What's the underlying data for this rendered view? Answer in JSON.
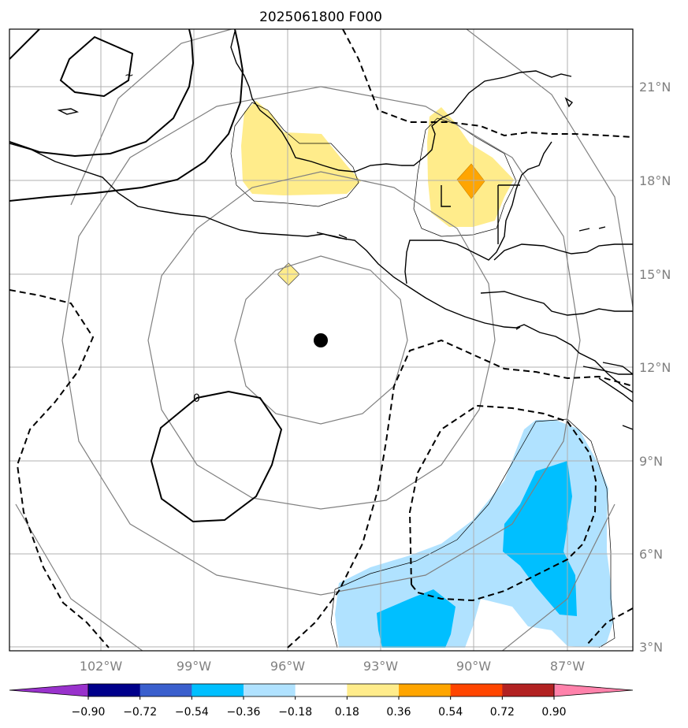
{
  "title": "2025061800 F000",
  "lon_labels": [
    "102°W",
    "99°W",
    "96°W",
    "93°W",
    "90°W",
    "87°W"
  ],
  "lat_labels": [
    "21°N",
    "18°N",
    "15°N",
    "12°N",
    "9°N",
    "6°N",
    "3°N"
  ],
  "colorbar": {
    "ticks": [
      "−0.90",
      "−0.72",
      "−0.54",
      "−0.36",
      "−0.18",
      "0.18",
      "0.36",
      "0.54",
      "0.72",
      "0.90"
    ],
    "colors": [
      "#9932cc",
      "#00008b",
      "#3a5fcd",
      "#00bfff",
      "#b0e2ff",
      "#ffffff",
      "#ffec8b",
      "#ffa500",
      "#ff4500",
      "#b22222",
      "#ff82ab"
    ]
  },
  "contour_labels": {
    "zero": "0",
    "tilde": "~"
  },
  "storm_center": {
    "lon": -95.0,
    "lat": 12.9
  },
  "colors": {
    "grid": "#b0b0b0",
    "rings": "#808080",
    "coast": "#000000",
    "contour": "#000000"
  }
}
